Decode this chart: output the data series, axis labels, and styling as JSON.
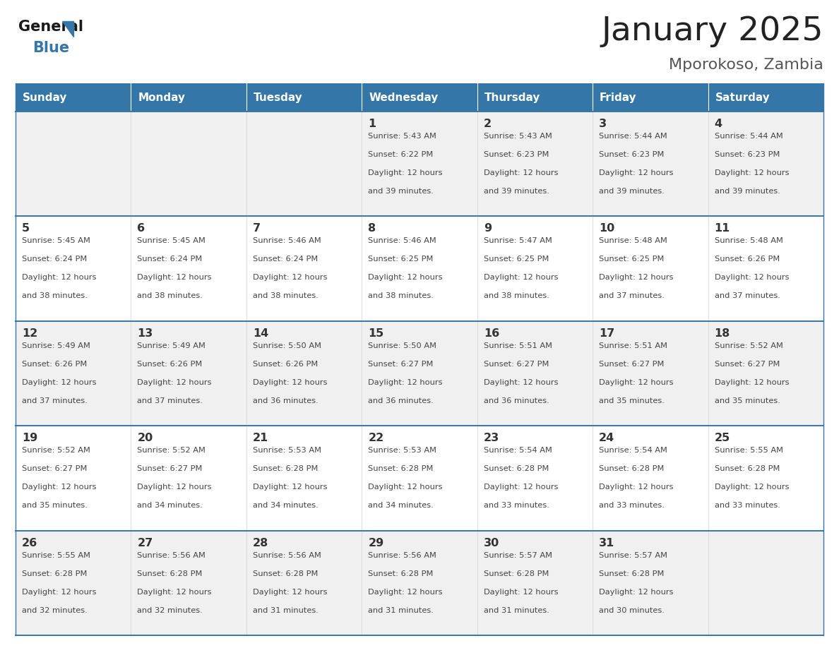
{
  "title": "January 2025",
  "subtitle": "Mporokoso, Zambia",
  "header_bg_color": "#3576a8",
  "header_text_color": "#ffffff",
  "day_names": [
    "Sunday",
    "Monday",
    "Tuesday",
    "Wednesday",
    "Thursday",
    "Friday",
    "Saturday"
  ],
  "row_colors": [
    "#f0f0f0",
    "#ffffff"
  ],
  "border_color": "#3576a8",
  "cell_border_color": "#cccccc",
  "text_color": "#444444",
  "day_num_color": "#333333",
  "title_color": "#222222",
  "subtitle_color": "#555555",
  "calendar": [
    [
      {
        "day": "",
        "sunrise": "",
        "sunset": "",
        "daylight": ""
      },
      {
        "day": "",
        "sunrise": "",
        "sunset": "",
        "daylight": ""
      },
      {
        "day": "",
        "sunrise": "",
        "sunset": "",
        "daylight": ""
      },
      {
        "day": "1",
        "sunrise": "5:43 AM",
        "sunset": "6:22 PM",
        "daylight": "12 hours and 39 minutes."
      },
      {
        "day": "2",
        "sunrise": "5:43 AM",
        "sunset": "6:23 PM",
        "daylight": "12 hours and 39 minutes."
      },
      {
        "day": "3",
        "sunrise": "5:44 AM",
        "sunset": "6:23 PM",
        "daylight": "12 hours and 39 minutes."
      },
      {
        "day": "4",
        "sunrise": "5:44 AM",
        "sunset": "6:23 PM",
        "daylight": "12 hours and 39 minutes."
      }
    ],
    [
      {
        "day": "5",
        "sunrise": "5:45 AM",
        "sunset": "6:24 PM",
        "daylight": "12 hours and 38 minutes."
      },
      {
        "day": "6",
        "sunrise": "5:45 AM",
        "sunset": "6:24 PM",
        "daylight": "12 hours and 38 minutes."
      },
      {
        "day": "7",
        "sunrise": "5:46 AM",
        "sunset": "6:24 PM",
        "daylight": "12 hours and 38 minutes."
      },
      {
        "day": "8",
        "sunrise": "5:46 AM",
        "sunset": "6:25 PM",
        "daylight": "12 hours and 38 minutes."
      },
      {
        "day": "9",
        "sunrise": "5:47 AM",
        "sunset": "6:25 PM",
        "daylight": "12 hours and 38 minutes."
      },
      {
        "day": "10",
        "sunrise": "5:48 AM",
        "sunset": "6:25 PM",
        "daylight": "12 hours and 37 minutes."
      },
      {
        "day": "11",
        "sunrise": "5:48 AM",
        "sunset": "6:26 PM",
        "daylight": "12 hours and 37 minutes."
      }
    ],
    [
      {
        "day": "12",
        "sunrise": "5:49 AM",
        "sunset": "6:26 PM",
        "daylight": "12 hours and 37 minutes."
      },
      {
        "day": "13",
        "sunrise": "5:49 AM",
        "sunset": "6:26 PM",
        "daylight": "12 hours and 37 minutes."
      },
      {
        "day": "14",
        "sunrise": "5:50 AM",
        "sunset": "6:26 PM",
        "daylight": "12 hours and 36 minutes."
      },
      {
        "day": "15",
        "sunrise": "5:50 AM",
        "sunset": "6:27 PM",
        "daylight": "12 hours and 36 minutes."
      },
      {
        "day": "16",
        "sunrise": "5:51 AM",
        "sunset": "6:27 PM",
        "daylight": "12 hours and 36 minutes."
      },
      {
        "day": "17",
        "sunrise": "5:51 AM",
        "sunset": "6:27 PM",
        "daylight": "12 hours and 35 minutes."
      },
      {
        "day": "18",
        "sunrise": "5:52 AM",
        "sunset": "6:27 PM",
        "daylight": "12 hours and 35 minutes."
      }
    ],
    [
      {
        "day": "19",
        "sunrise": "5:52 AM",
        "sunset": "6:27 PM",
        "daylight": "12 hours and 35 minutes."
      },
      {
        "day": "20",
        "sunrise": "5:52 AM",
        "sunset": "6:27 PM",
        "daylight": "12 hours and 34 minutes."
      },
      {
        "day": "21",
        "sunrise": "5:53 AM",
        "sunset": "6:28 PM",
        "daylight": "12 hours and 34 minutes."
      },
      {
        "day": "22",
        "sunrise": "5:53 AM",
        "sunset": "6:28 PM",
        "daylight": "12 hours and 34 minutes."
      },
      {
        "day": "23",
        "sunrise": "5:54 AM",
        "sunset": "6:28 PM",
        "daylight": "12 hours and 33 minutes."
      },
      {
        "day": "24",
        "sunrise": "5:54 AM",
        "sunset": "6:28 PM",
        "daylight": "12 hours and 33 minutes."
      },
      {
        "day": "25",
        "sunrise": "5:55 AM",
        "sunset": "6:28 PM",
        "daylight": "12 hours and 33 minutes."
      }
    ],
    [
      {
        "day": "26",
        "sunrise": "5:55 AM",
        "sunset": "6:28 PM",
        "daylight": "12 hours and 32 minutes."
      },
      {
        "day": "27",
        "sunrise": "5:56 AM",
        "sunset": "6:28 PM",
        "daylight": "12 hours and 32 minutes."
      },
      {
        "day": "28",
        "sunrise": "5:56 AM",
        "sunset": "6:28 PM",
        "daylight": "12 hours and 31 minutes."
      },
      {
        "day": "29",
        "sunrise": "5:56 AM",
        "sunset": "6:28 PM",
        "daylight": "12 hours and 31 minutes."
      },
      {
        "day": "30",
        "sunrise": "5:57 AM",
        "sunset": "6:28 PM",
        "daylight": "12 hours and 31 minutes."
      },
      {
        "day": "31",
        "sunrise": "5:57 AM",
        "sunset": "6:28 PM",
        "daylight": "12 hours and 30 minutes."
      },
      {
        "day": "",
        "sunrise": "",
        "sunset": "",
        "daylight": ""
      }
    ]
  ],
  "logo_text_general": "General",
  "logo_text_blue": "Blue",
  "logo_color_general": "#1a1a1a",
  "logo_color_blue": "#3576a8",
  "logo_triangle_color": "#3576a8"
}
